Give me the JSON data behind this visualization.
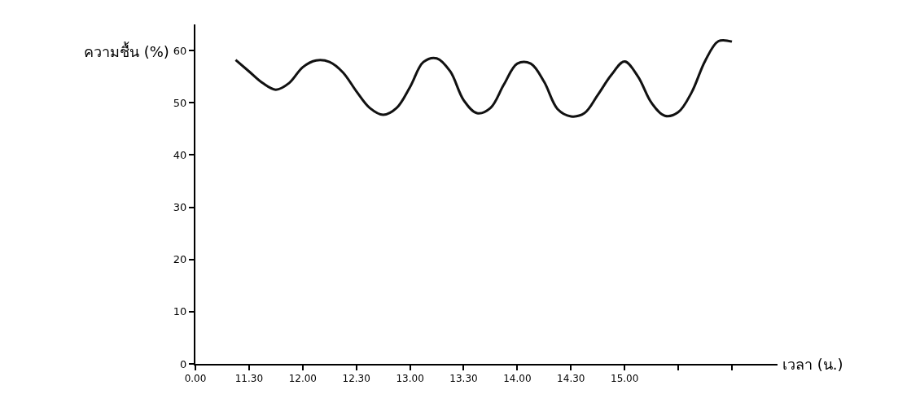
{
  "chart_data": {
    "type": "line",
    "xlabel": "เวลา (น.)",
    "ylabel": "ความชื้น (%)",
    "categories": [
      "0.00",
      null,
      null,
      null,
      "11.30",
      null,
      null,
      null,
      "12.00",
      null,
      null,
      null,
      "12.30",
      null,
      null,
      null,
      "13.00",
      null,
      null,
      null,
      "13.30",
      null,
      null,
      null,
      "14.00",
      null,
      null,
      null,
      "14.30",
      null,
      null,
      null,
      "15.00",
      null,
      null,
      null,
      null,
      null,
      null,
      null,
      null,
      null,
      null,
      null
    ],
    "series": [
      {
        "color": "#111111",
        "values": [
          null,
          null,
          null,
          58.2,
          56.0,
          53.8,
          52.5,
          53.8,
          56.8,
          58.1,
          57.8,
          55.8,
          52.2,
          49.0,
          47.7,
          49.0,
          53.0,
          57.8,
          58.5,
          56.0,
          50.5,
          48.0,
          49.0,
          53.5,
          57.5,
          57.5,
          54.0,
          48.8,
          47.4,
          48.0,
          51.5,
          55.3,
          57.9,
          55.0,
          50.0,
          47.5,
          48.2,
          52.0,
          58.0,
          61.8,
          61.7,
          null,
          null,
          null
        ]
      }
    ],
    "ylim": [
      0,
      65
    ],
    "yticks": [
      0,
      10,
      20,
      30,
      40,
      50,
      60
    ],
    "grid": false,
    "legend": false,
    "marker": "none",
    "line_style": "solid"
  }
}
